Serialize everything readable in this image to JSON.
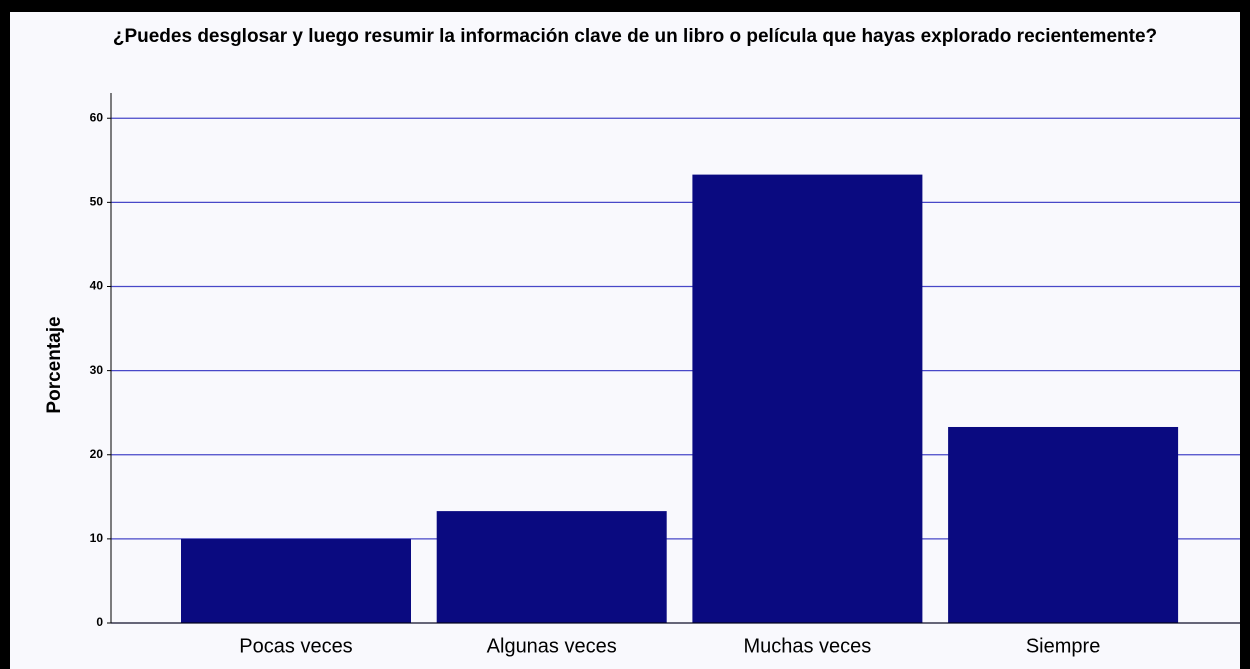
{
  "chart_data": {
    "type": "bar",
    "title": "¿Puedes desglosar y luego resumir la información clave de un libro o película que hayas explorado recientemente?",
    "y_label": "Porcentaje",
    "categories": [
      "Pocas veces",
      "Algunas veces",
      "Muchas veces",
      "Siempre"
    ],
    "values": [
      10,
      13.3,
      53.3,
      23.3
    ],
    "color": "#0a0a80",
    "ylim": [
      0,
      63
    ],
    "yticks": [
      0,
      10,
      20,
      30,
      40,
      50,
      60
    ],
    "grid": true
  }
}
